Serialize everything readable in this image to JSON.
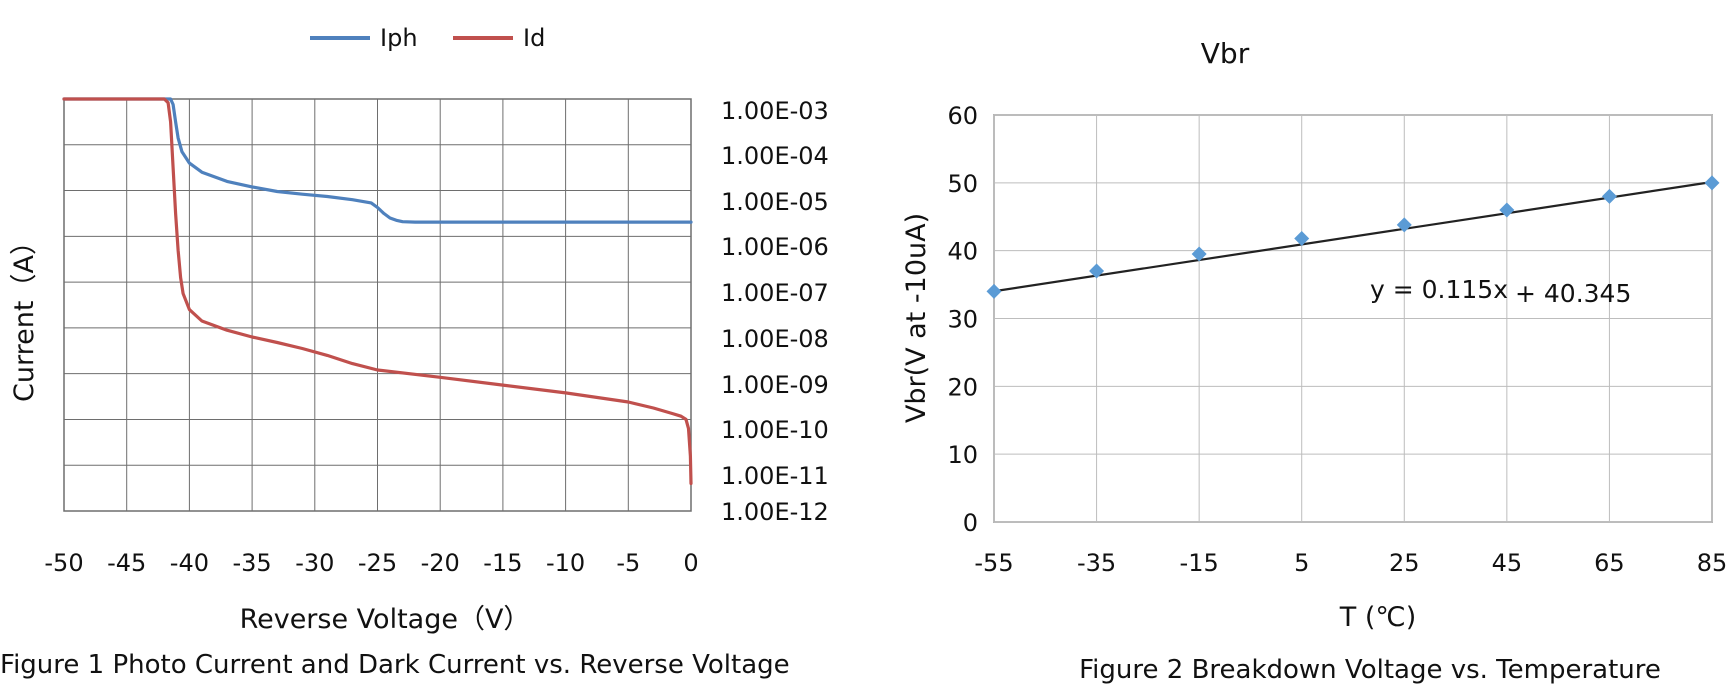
{
  "chart_data": [
    {
      "type": "line",
      "title": "",
      "caption": "Figure 1 Photo Current and Dark Current vs. Reverse Voltage",
      "xlabel": "Reverse Voltage（V）",
      "ylabel": "Current（A）",
      "xlim": [
        -50,
        0
      ],
      "x_ticks": [
        -50,
        -45,
        -40,
        -35,
        -30,
        -25,
        -20,
        -15,
        -10,
        -5,
        0
      ],
      "x_tick_labels": [
        "-50",
        "-45",
        "-40",
        "-35",
        "-30",
        "-25",
        "-20",
        "-15",
        "-10",
        "-5",
        "0"
      ],
      "y_scale": "log",
      "ylim_exponent": [
        -12,
        -3
      ],
      "y_tick_exponents": [
        -3,
        -4,
        -5,
        -6,
        -7,
        -8,
        -9,
        -10,
        -11,
        -12
      ],
      "y_tick_labels": [
        "1.00E-03",
        "1.00E-04",
        "1.00E-05",
        "1.00E-06",
        "1.00E-07",
        "1.00E-08",
        "1.00E-09",
        "1.00E-10",
        "1.00E-11",
        "1.00E-12"
      ],
      "legend": "top",
      "grid": true,
      "series": [
        {
          "name": "Iph",
          "color": "#4f81bd",
          "x": [
            -50,
            -42,
            -41.5,
            -41.3,
            -41.1,
            -40.9,
            -40.6,
            -40,
            -39,
            -37,
            -35,
            -33,
            -31,
            -29,
            -27,
            -25.5,
            -25,
            -24.5,
            -24,
            -23.5,
            -23,
            -22,
            -20,
            -15,
            -10,
            -5,
            0
          ],
          "log_values": [
            -3,
            -3,
            -3,
            -3.12,
            -3.5,
            -3.85,
            -4.15,
            -4.4,
            -4.6,
            -4.8,
            -4.92,
            -5.02,
            -5.08,
            -5.13,
            -5.2,
            -5.27,
            -5.37,
            -5.5,
            -5.6,
            -5.65,
            -5.68,
            -5.69,
            -5.69,
            -5.69,
            -5.69,
            -5.69,
            -5.69
          ]
        },
        {
          "name": "Id",
          "color": "#c0504d",
          "x": [
            -50,
            -42.5,
            -42,
            -41.7,
            -41.5,
            -41.3,
            -41.1,
            -40.9,
            -40.7,
            -40.5,
            -40,
            -39,
            -37,
            -35,
            -33,
            -31,
            -29,
            -27,
            -25,
            -20,
            -15,
            -10,
            -5,
            -3,
            -1.5,
            -0.8,
            -0.4,
            -0.2,
            -0.05,
            0
          ],
          "log_values": [
            -3,
            -3,
            -3,
            -3.08,
            -3.5,
            -4.5,
            -5.5,
            -6.3,
            -6.9,
            -7.25,
            -7.6,
            -7.85,
            -8.05,
            -8.2,
            -8.32,
            -8.45,
            -8.6,
            -8.78,
            -8.92,
            -9.08,
            -9.25,
            -9.42,
            -9.62,
            -9.75,
            -9.87,
            -9.93,
            -10.0,
            -10.2,
            -10.8,
            -11.4
          ]
        }
      ]
    },
    {
      "type": "scatter",
      "title": "Vbr",
      "caption": "Figure 2 Breakdown Voltage vs. Temperature",
      "xlabel": "T (℃)",
      "ylabel": "Vbr(V at -10uA)",
      "xlim": [
        -55,
        85
      ],
      "x_ticks": [
        -55,
        -35,
        -15,
        5,
        25,
        45,
        65,
        85
      ],
      "x_tick_labels": [
        "-55",
        "-35",
        "-15",
        "5",
        "25",
        "45",
        "65",
        "85"
      ],
      "ylim": [
        0,
        60
      ],
      "y_ticks": [
        0,
        10,
        20,
        30,
        40,
        50,
        60
      ],
      "y_tick_labels": [
        "0",
        "10",
        "20",
        "30",
        "40",
        "50",
        "60"
      ],
      "grid": true,
      "series": [
        {
          "name": "Vbr",
          "color": "#5b9bd5",
          "x": [
            -55,
            -35,
            -15,
            5,
            25,
            45,
            65,
            85
          ],
          "y": [
            34,
            37,
            39.5,
            41.8,
            43.8,
            46,
            48,
            50
          ]
        }
      ],
      "trendline": {
        "slope": 0.115,
        "intercept": 40.345,
        "x_range": [
          -55,
          85
        ],
        "color": "#222222",
        "equation_part1": "y = 0.115x",
        "equation_part2": "+ 40.345"
      }
    }
  ]
}
